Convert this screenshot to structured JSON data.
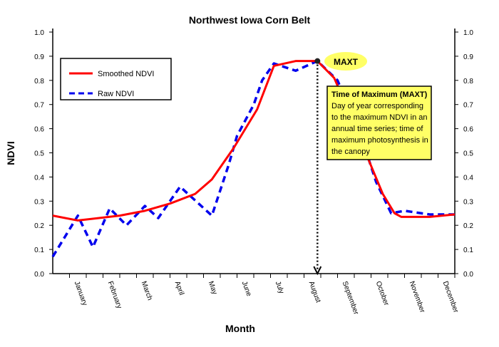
{
  "chart_data": {
    "type": "line",
    "title": "Northwest Iowa Corn Belt",
    "xlabel": "Month",
    "ylabel": "NDVI",
    "x_unit": "half-month index (0-24)",
    "xlim": [
      0,
      24
    ],
    "ylim": [
      0,
      1.0
    ],
    "yticks": [
      "0.0",
      "0.1",
      "0.2",
      "0.3",
      "0.4",
      "0.5",
      "0.6",
      "0.7",
      "0.8",
      "0.9",
      "1.0"
    ],
    "months": [
      "January",
      "February",
      "March",
      "April",
      "May",
      "June",
      "July",
      "August",
      "September",
      "October",
      "November",
      "December"
    ],
    "legend_position": "top-left",
    "series": [
      {
        "name": "Smoothed NDVI",
        "color": "#ff0000",
        "style": "solid",
        "x": [
          0,
          1.5,
          4,
          5.5,
          7,
          8.5,
          9.5,
          10.8,
          12.2,
          13.2,
          14.5,
          15.8,
          16.8,
          17.8,
          18.8,
          19.7,
          20.4,
          20.8,
          22.5,
          24
        ],
        "y": [
          0.24,
          0.22,
          0.24,
          0.26,
          0.29,
          0.33,
          0.39,
          0.52,
          0.68,
          0.86,
          0.88,
          0.88,
          0.81,
          0.65,
          0.48,
          0.33,
          0.25,
          0.235,
          0.235,
          0.245
        ]
      },
      {
        "name": "Raw NDVI",
        "color": "#0000ee",
        "style": "dashed",
        "x": [
          0,
          1.5,
          2.4,
          3.4,
          4.4,
          5.5,
          6.3,
          7.6,
          9.5,
          10.5,
          11,
          12,
          12.5,
          13.2,
          14.5,
          15.8,
          17,
          18.5,
          19.3,
          20.2,
          21,
          22.5,
          24
        ],
        "y": [
          0.07,
          0.24,
          0.11,
          0.27,
          0.2,
          0.28,
          0.23,
          0.36,
          0.24,
          0.45,
          0.57,
          0.7,
          0.8,
          0.87,
          0.84,
          0.88,
          0.8,
          0.55,
          0.38,
          0.25,
          0.26,
          0.245,
          0.245
        ]
      }
    ],
    "annotation": {
      "marker_x": 15.8,
      "marker_y": 0.88,
      "label": "MAXT",
      "box_title": "Time of Maximum (MAXT)",
      "box_lines": [
        "Day of year corresponding",
        "to the maximum NDVI in an",
        "annual time series; time of",
        "maximum photosynthesis in",
        "the canopy"
      ]
    }
  }
}
